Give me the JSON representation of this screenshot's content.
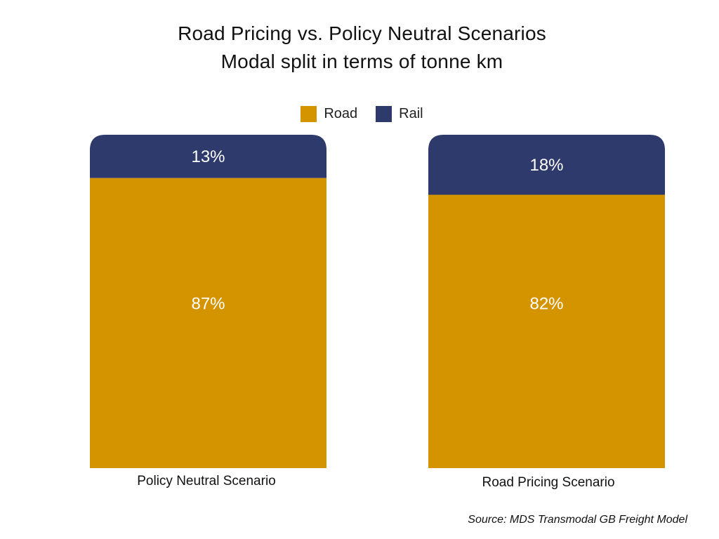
{
  "title_line1": "Road Pricing vs. Policy Neutral Scenarios",
  "title_line2": "Modal split in terms of tonne km",
  "source": "Source: MDS Transmodal GB Freight Model",
  "colors": {
    "road": "#D39400",
    "rail": "#2E3A6B"
  },
  "chart_data": {
    "type": "bar",
    "stacked": true,
    "normalized": true,
    "categories": [
      "Policy Neutral Scenario",
      "Road Pricing Scenario"
    ],
    "series": [
      {
        "name": "Road",
        "values": [
          87,
          82
        ],
        "labels": [
          "87%",
          "82%"
        ]
      },
      {
        "name": "Rail",
        "values": [
          13,
          18
        ],
        "labels": [
          "13%",
          "18%"
        ]
      }
    ],
    "ylim": [
      0,
      100
    ],
    "legend": "top-center",
    "grid": false
  }
}
